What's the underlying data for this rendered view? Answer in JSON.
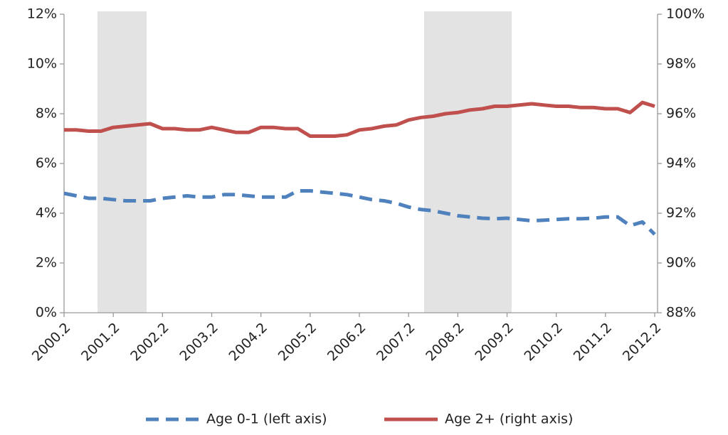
{
  "chart_data": {
    "type": "line",
    "categories": [
      "2000.2",
      null,
      null,
      null,
      "2001.2",
      null,
      null,
      null,
      "2002.2",
      null,
      null,
      null,
      "2003.2",
      null,
      null,
      null,
      "2004.2",
      null,
      null,
      null,
      "2005.2",
      null,
      null,
      null,
      "2006.2",
      null,
      null,
      null,
      "2007.2",
      null,
      null,
      null,
      "2008.2",
      null,
      null,
      null,
      "2009.2",
      null,
      null,
      null,
      "2010.2",
      null,
      null,
      null,
      "2011.2",
      null,
      null,
      null,
      "2012.2"
    ],
    "series": [
      {
        "name": "Age 0-1 (left axis)",
        "color": "#4f81bd",
        "dash": true,
        "axis": "y",
        "values": [
          4.8,
          4.7,
          4.6,
          4.6,
          4.55,
          4.5,
          4.5,
          4.5,
          4.6,
          4.65,
          4.7,
          4.65,
          4.65,
          4.75,
          4.75,
          4.7,
          4.65,
          4.65,
          4.65,
          4.9,
          4.9,
          4.85,
          4.8,
          4.75,
          4.65,
          4.55,
          4.5,
          4.4,
          4.25,
          4.15,
          4.1,
          4.0,
          3.9,
          3.85,
          3.8,
          3.78,
          3.8,
          3.75,
          3.7,
          3.72,
          3.75,
          3.78,
          3.78,
          3.8,
          3.85,
          3.85,
          3.5,
          3.65,
          3.15
        ]
      },
      {
        "name": "Age 2+ (right axis)",
        "color": "#c0504d",
        "dash": false,
        "axis": "y2",
        "values": [
          95.35,
          95.35,
          95.3,
          95.3,
          95.45,
          95.5,
          95.55,
          95.6,
          95.4,
          95.4,
          95.35,
          95.35,
          95.45,
          95.35,
          95.25,
          95.25,
          95.45,
          95.45,
          95.4,
          95.4,
          95.1,
          95.1,
          95.1,
          95.15,
          95.35,
          95.4,
          95.5,
          95.55,
          95.75,
          95.85,
          95.9,
          96.0,
          96.05,
          96.15,
          96.2,
          96.3,
          96.3,
          96.35,
          96.4,
          96.35,
          96.3,
          96.3,
          96.25,
          96.25,
          96.2,
          96.2,
          96.05,
          96.45,
          96.3
        ]
      }
    ],
    "ylim": [
      0,
      12
    ],
    "yticks": [
      {
        "value": 0,
        "label": "0%"
      },
      {
        "value": 2,
        "label": "2%"
      },
      {
        "value": 4,
        "label": "4%"
      },
      {
        "value": 6,
        "label": "6%"
      },
      {
        "value": 8,
        "label": "8%"
      },
      {
        "value": 10,
        "label": "10%"
      },
      {
        "value": 12,
        "label": "12%"
      }
    ],
    "y2lim": [
      88,
      100
    ],
    "y2ticks": [
      {
        "value": 88,
        "label": "88%"
      },
      {
        "value": 90,
        "label": "90%"
      },
      {
        "value": 92,
        "label": "92%"
      },
      {
        "value": 94,
        "label": "94%"
      },
      {
        "value": 96,
        "label": "96%"
      },
      {
        "value": 98,
        "label": "98%"
      },
      {
        "value": 100,
        "label": "100%"
      }
    ],
    "grid": false
  }
}
